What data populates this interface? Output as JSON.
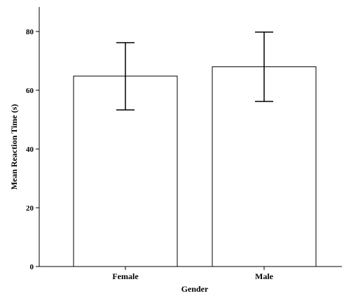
{
  "chart_data": {
    "type": "bar",
    "categories": [
      "Female",
      "Male"
    ],
    "series": [
      {
        "values": [
          64.8,
          68.0
        ],
        "error_low": [
          53.3,
          56.2
        ],
        "error_high": [
          76.2,
          79.8
        ]
      }
    ],
    "xlabel": "Gender",
    "ylabel": "Mean Reaction Time (s)",
    "ylim": [
      0,
      85
    ],
    "yticks": [
      0,
      20,
      40,
      60,
      80
    ],
    "grid": false,
    "bar_fill": "#ffffff",
    "bar_stroke": "#000000"
  }
}
